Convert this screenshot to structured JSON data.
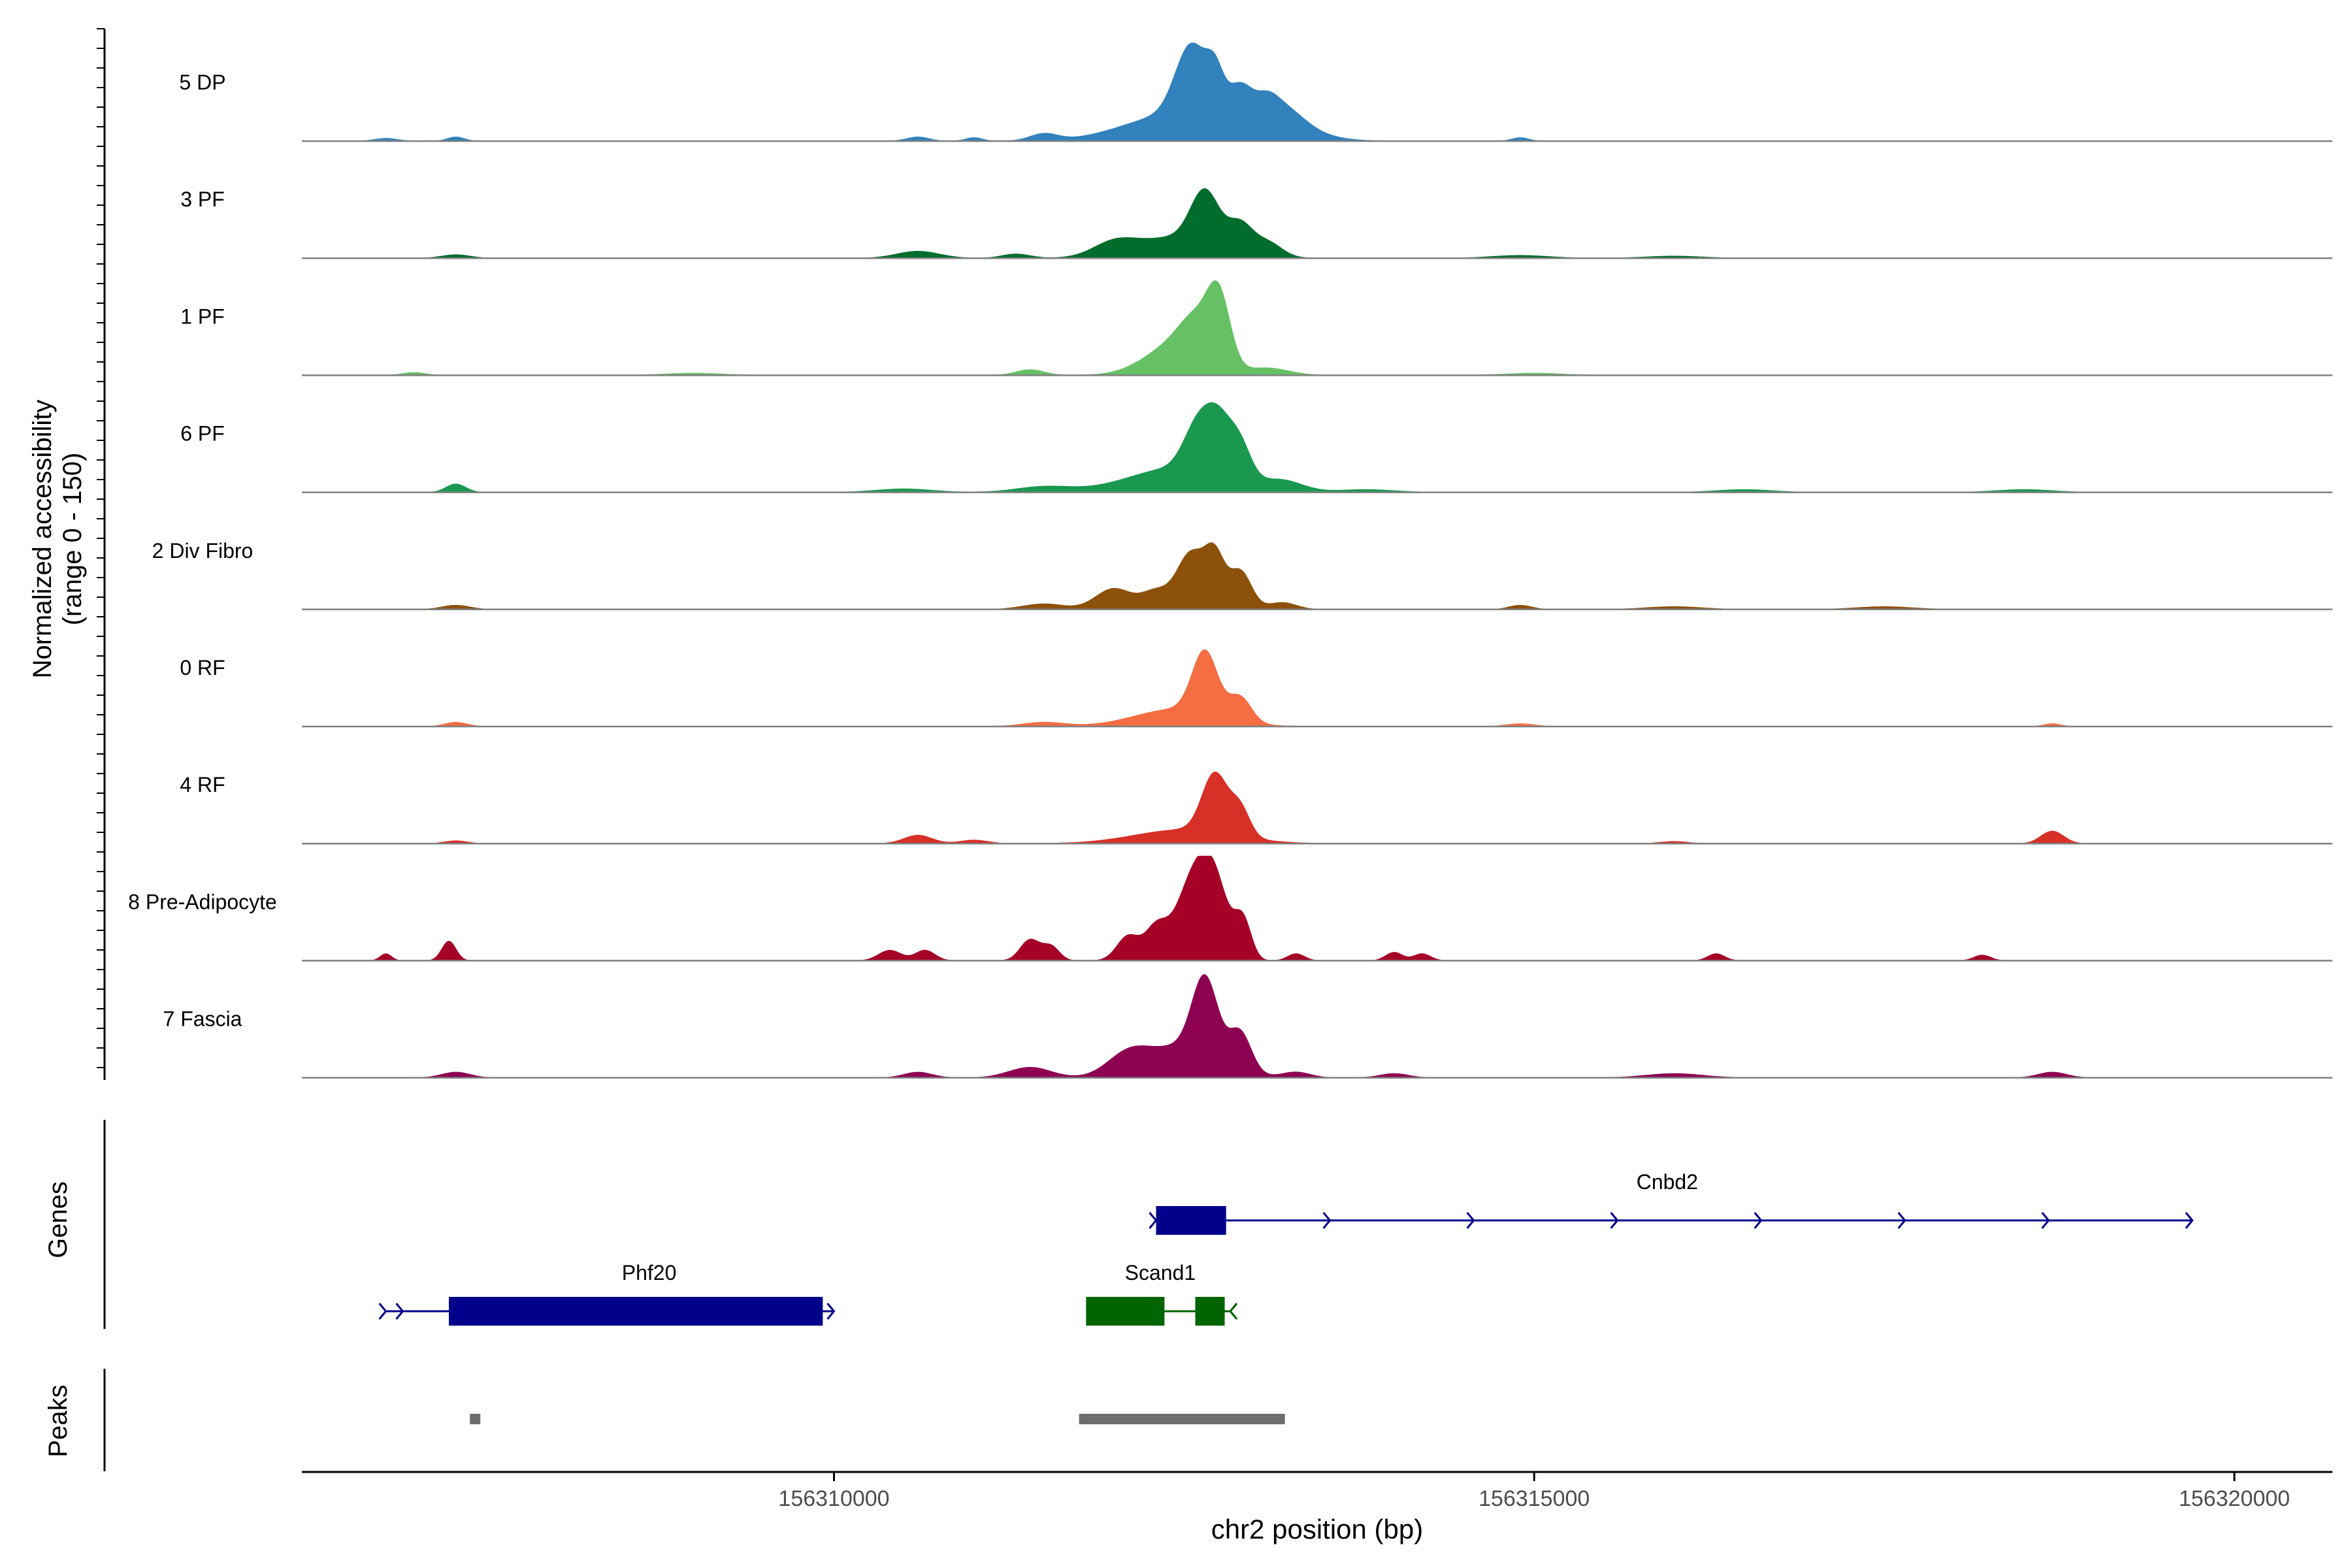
{
  "chart_data": {
    "type": "area",
    "title": "",
    "ylabel_line1": "Normalized accessibility",
    "ylabel_line2": "(range 0 - 150)",
    "xlabel": "chr2 position (bp)",
    "xlim": [
      156306200,
      156320700
    ],
    "ylim": [
      0,
      150
    ],
    "x_ticks": [
      156310000,
      156315000,
      156320000
    ],
    "x_tick_labels": [
      "156310000",
      "156315000",
      "156320000"
    ],
    "genes_label": "Genes",
    "peaks_label": "Peaks",
    "tracks": [
      {
        "name": "5 DP",
        "color": "#3182bd",
        "peaks": [
          [
            156313000,
            40,
            300
          ],
          [
            156313200,
            20,
            150
          ],
          [
            156312400,
            35,
            350
          ],
          [
            156312550,
            95,
            110
          ],
          [
            156312720,
            45,
            60
          ],
          [
            156312900,
            30,
            80
          ],
          [
            156313100,
            12,
            70
          ],
          [
            156311500,
            10,
            100
          ],
          [
            156306800,
            4,
            80
          ],
          [
            156307300,
            6,
            60
          ],
          [
            156310600,
            6,
            80
          ],
          [
            156311000,
            5,
            60
          ],
          [
            156314900,
            5,
            60
          ]
        ]
      },
      {
        "name": "3 PF",
        "color": "#006d2c",
        "peaks": [
          [
            156312450,
            30,
            300
          ],
          [
            156312650,
            75,
            100
          ],
          [
            156312900,
            40,
            90
          ],
          [
            156313100,
            20,
            100
          ],
          [
            156312000,
            18,
            150
          ],
          [
            156310600,
            10,
            150
          ],
          [
            156311300,
            6,
            100
          ],
          [
            156307300,
            5,
            100
          ],
          [
            156314900,
            4,
            200
          ],
          [
            156316000,
            3,
            200
          ]
        ]
      },
      {
        "name": "1 PF",
        "color": "#66c164",
        "peaks": [
          [
            156312450,
            45,
            220
          ],
          [
            156312750,
            90,
            80
          ],
          [
            156312600,
            50,
            120
          ],
          [
            156313100,
            10,
            150
          ],
          [
            156311400,
            8,
            100
          ],
          [
            156307000,
            4,
            80
          ],
          [
            156309000,
            3,
            200
          ],
          [
            156315000,
            3,
            200
          ]
        ]
      },
      {
        "name": "6 PF",
        "color": "#1a9850",
        "peaks": [
          [
            156312450,
            35,
            350
          ],
          [
            156312600,
            65,
            100
          ],
          [
            156312750,
            70,
            90
          ],
          [
            156312900,
            50,
            80
          ],
          [
            156313200,
            15,
            150
          ],
          [
            156311500,
            8,
            200
          ],
          [
            156307300,
            12,
            70
          ],
          [
            156310500,
            5,
            200
          ],
          [
            156313800,
            4,
            200
          ],
          [
            156316500,
            4,
            200
          ],
          [
            156318500,
            4,
            200
          ]
        ]
      },
      {
        "name": "2 Div Fibro",
        "color": "#8c510a",
        "peaks": [
          [
            156312000,
            30,
            130
          ],
          [
            156312300,
            25,
            100
          ],
          [
            156312550,
            80,
            100
          ],
          [
            156312720,
            70,
            70
          ],
          [
            156312900,
            55,
            80
          ],
          [
            156313200,
            10,
            100
          ],
          [
            156311500,
            8,
            150
          ],
          [
            156307300,
            6,
            100
          ],
          [
            156314900,
            6,
            80
          ],
          [
            156316000,
            4,
            200
          ],
          [
            156317500,
            4,
            200
          ]
        ]
      },
      {
        "name": "0 RF",
        "color": "#f46d43",
        "peaks": [
          [
            156312450,
            25,
            300
          ],
          [
            156312650,
            90,
            90
          ],
          [
            156312900,
            35,
            80
          ],
          [
            156311500,
            6,
            150
          ],
          [
            156307300,
            6,
            80
          ],
          [
            156314900,
            4,
            100
          ],
          [
            156318700,
            4,
            60
          ]
        ]
      },
      {
        "name": "4 RF",
        "color": "#d73027",
        "peaks": [
          [
            156312500,
            20,
            350
          ],
          [
            156312720,
            85,
            90
          ],
          [
            156312900,
            40,
            70
          ],
          [
            156310600,
            12,
            100
          ],
          [
            156311000,
            5,
            100
          ],
          [
            156318700,
            18,
            80
          ],
          [
            156307300,
            4,
            80
          ],
          [
            156316000,
            3,
            100
          ]
        ]
      },
      {
        "name": "8 Pre-Adipocyte",
        "color": "#a50026",
        "peaks": [
          [
            156312560,
            110,
            120
          ],
          [
            156312720,
            95,
            100
          ],
          [
            156312300,
            45,
            80
          ],
          [
            156312100,
            35,
            80
          ],
          [
            156312920,
            55,
            60
          ],
          [
            156311400,
            30,
            70
          ],
          [
            156311550,
            20,
            60
          ],
          [
            156307250,
            28,
            50
          ],
          [
            156306800,
            10,
            40
          ],
          [
            156310400,
            15,
            80
          ],
          [
            156310650,
            15,
            70
          ],
          [
            156313300,
            10,
            60
          ],
          [
            156314000,
            12,
            60
          ],
          [
            156314200,
            10,
            60
          ],
          [
            156318200,
            8,
            60
          ],
          [
            156316300,
            10,
            60
          ]
        ]
      },
      {
        "name": "7 Fascia",
        "color": "#8e0152",
        "peaks": [
          [
            156312500,
            45,
            250
          ],
          [
            156312650,
            110,
            90
          ],
          [
            156312900,
            55,
            80
          ],
          [
            156312100,
            30,
            150
          ],
          [
            156311400,
            15,
            150
          ],
          [
            156307300,
            8,
            100
          ],
          [
            156310600,
            8,
            100
          ],
          [
            156313300,
            8,
            100
          ],
          [
            156318700,
            8,
            100
          ],
          [
            156314000,
            6,
            100
          ],
          [
            156316000,
            6,
            200
          ]
        ]
      }
    ],
    "genes": [
      {
        "name": "Cnbd2",
        "color": "#00008b",
        "start": 156312300,
        "end": 156319700,
        "strand": "+",
        "row": 0,
        "exons": [
          [
            156312300,
            156312800
          ]
        ]
      },
      {
        "name": "Phf20",
        "color": "#00008b",
        "start": 156306800,
        "end": 156310000,
        "strand": "+",
        "row": 1,
        "exons": [
          [
            156307250,
            156309920
          ]
        ]
      },
      {
        "name": "Scand1",
        "color": "#006400",
        "start": 156311800,
        "end": 156312830,
        "strand": "-",
        "row": 1,
        "exons": [
          [
            156311800,
            156312360
          ],
          [
            156312580,
            156312790
          ]
        ]
      }
    ],
    "peak_regions": [
      [
        156307400,
        156307470
      ],
      [
        156311750,
        156313220
      ]
    ]
  }
}
